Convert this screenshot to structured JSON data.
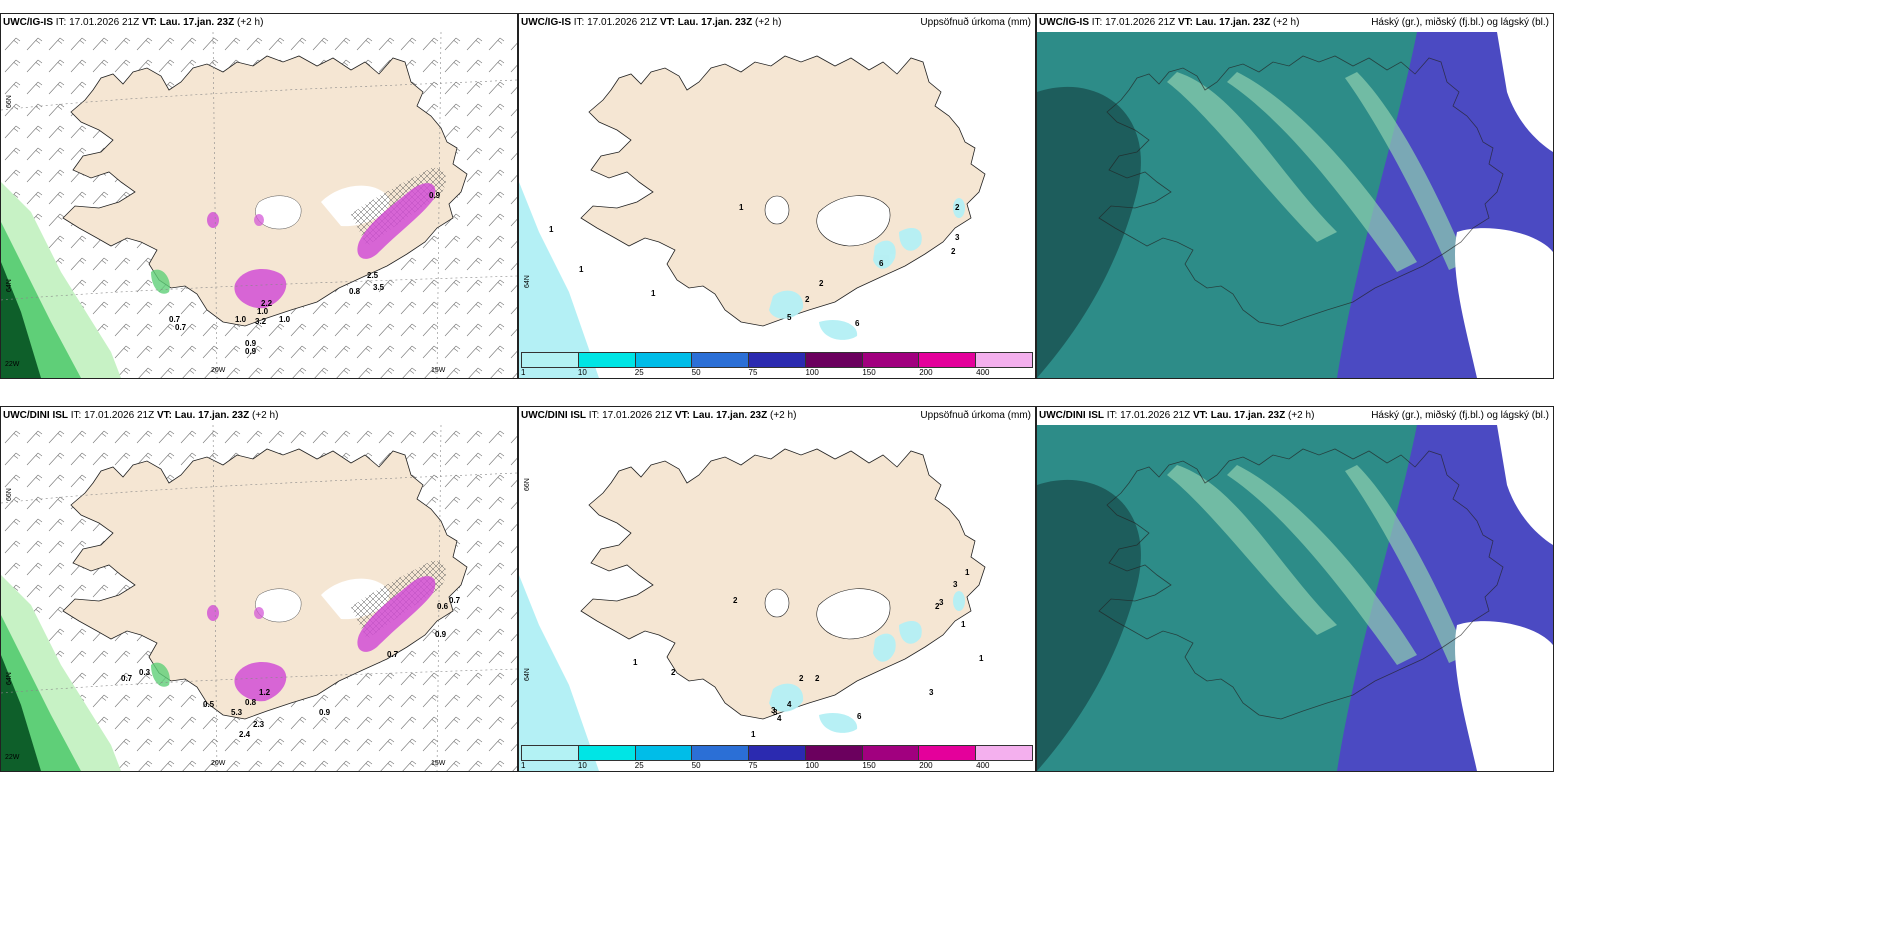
{
  "panels": [
    {
      "model": "UWC/IG-IS",
      "it_label": "IT:",
      "it": "17.01.2026 21Z",
      "vt_label": "VT:",
      "vt": "Lau. 17.jan. 23Z",
      "offset": "(+2 h)",
      "right_title": "",
      "labels": [
        {
          "t": "66N",
          "lab": true
        },
        {
          "t": "64N",
          "lab": true
        },
        {
          "t": "22W",
          "lab": true
        },
        {
          "t": "20W",
          "lab": true
        },
        {
          "t": "15W",
          "lab": true
        },
        {
          "t": "0.7"
        },
        {
          "t": "0.7"
        },
        {
          "t": "0.9"
        },
        {
          "t": "0.9"
        },
        {
          "t": "1.0"
        },
        {
          "t": "1.0"
        },
        {
          "t": "1.0"
        },
        {
          "t": "2.2"
        },
        {
          "t": "3.2"
        },
        {
          "t": "2.5"
        },
        {
          "t": "3.5"
        },
        {
          "t": "0.8"
        },
        {
          "t": "0.9"
        }
      ]
    },
    {
      "model": "UWC/IG-IS",
      "it_label": "IT:",
      "it": "17.01.2026 21Z",
      "vt_label": "VT:",
      "vt": "Lau. 17.jan. 23Z",
      "offset": "(+2 h)",
      "right_title": "Uppsöfnuð úrkoma (mm)",
      "labels": [
        {
          "t": "1"
        },
        {
          "t": "1"
        },
        {
          "t": "1"
        },
        {
          "t": "1"
        },
        {
          "t": "5"
        },
        {
          "t": "2"
        },
        {
          "t": "2"
        },
        {
          "t": "6"
        },
        {
          "t": "2"
        },
        {
          "t": "3"
        },
        {
          "t": "2"
        },
        {
          "t": "6"
        },
        {
          "t": "64N",
          "lab": true
        }
      ]
    },
    {
      "model": "UWC/IG-IS",
      "it_label": "IT:",
      "it": "17.01.2026 21Z",
      "vt_label": "VT:",
      "vt": "Lau. 17.jan. 23Z",
      "offset": "(+2 h)",
      "right_title": "Háský (gr.), miðský (fj.bl.) og lágský (bl.)",
      "labels": []
    },
    {
      "model": "UWC/DINI ISL",
      "it_label": "IT:",
      "it": "17.01.2026 21Z",
      "vt_label": "VT:",
      "vt": "Lau. 17.jan. 23Z",
      "offset": "(+2 h)",
      "right_title": "",
      "labels": [
        {
          "t": "66N",
          "lab": true
        },
        {
          "t": "64N",
          "lab": true
        },
        {
          "t": "22W",
          "lab": true
        },
        {
          "t": "20W",
          "lab": true
        },
        {
          "t": "15W",
          "lab": true
        },
        {
          "t": "0.7"
        },
        {
          "t": "0.3"
        },
        {
          "t": "0.5"
        },
        {
          "t": "0.9"
        },
        {
          "t": "0.7"
        },
        {
          "t": "0.9"
        },
        {
          "t": "0.6"
        },
        {
          "t": "0.7"
        },
        {
          "t": "5.3"
        },
        {
          "t": "2.4"
        },
        {
          "t": "1.2"
        },
        {
          "t": "2.3"
        },
        {
          "t": "0.8"
        }
      ]
    },
    {
      "model": "UWC/DINI ISL",
      "it_label": "IT:",
      "it": "17.01.2026 21Z",
      "vt_label": "VT:",
      "vt": "Lau. 17.jan. 23Z",
      "offset": "(+2 h)",
      "right_title": "Uppsöfnuð úrkoma (mm)",
      "labels": [
        {
          "t": "2"
        },
        {
          "t": "2"
        },
        {
          "t": "2"
        },
        {
          "t": "2"
        },
        {
          "t": "3"
        },
        {
          "t": "4"
        },
        {
          "t": "3"
        },
        {
          "t": "4"
        },
        {
          "t": "6"
        },
        {
          "t": "3"
        },
        {
          "t": "3"
        },
        {
          "t": "2"
        },
        {
          "t": "3"
        },
        {
          "t": "1"
        },
        {
          "t": "1"
        },
        {
          "t": "1"
        },
        {
          "t": "1"
        },
        {
          "t": "1"
        },
        {
          "t": "66N",
          "lab": true
        },
        {
          "t": "64N",
          "lab": true
        }
      ]
    },
    {
      "model": "UWC/DINI ISL",
      "it_label": "IT:",
      "it": "17.01.2026 21Z",
      "vt_label": "VT:",
      "vt": "Lau. 17.jan. 23Z",
      "offset": "(+2 h)",
      "right_title": "Háský (gr.), miðský (fj.bl.) og lágský (bl.)",
      "labels": []
    }
  ],
  "colorbar": {
    "colors": [
      "#b3f2f4",
      "#00e5e5",
      "#00bde8",
      "#2b6fd6",
      "#2b2ab0",
      "#6b005e",
      "#a1007f",
      "#e4009b",
      "#f4b0ee"
    ],
    "ticks": [
      "1",
      "10",
      "25",
      "50",
      "75",
      "100",
      "150",
      "200",
      "400"
    ]
  },
  "colors": {
    "land": "#f5e6d3",
    "sea": "#ffffff",
    "precip_light": "#c7f2c5",
    "precip_mid": "#5fcf78",
    "precip_dark": "#0e5f2a",
    "precip_magenta": "#d14ed5",
    "accum_cyan": "#b4f0f5",
    "cloud_high": "#8fd0b0",
    "cloud_mid": "#2d8c88",
    "cloud_low": "#4b4ac2",
    "cloud_dark": "#1d5d5c",
    "cloud_white": "#ffffff"
  }
}
